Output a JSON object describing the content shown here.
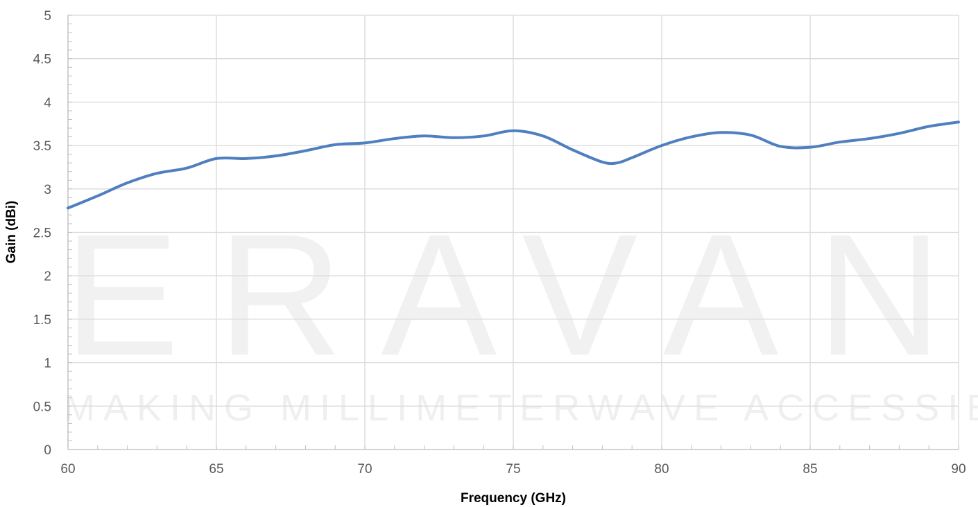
{
  "watermark": {
    "brand": "ERAVANT",
    "tagline": "MAKING MILLIMETERWAVE ACCESSIBLE"
  },
  "chart_data": {
    "type": "line",
    "title": "",
    "xlabel": "Frequency (GHz)",
    "ylabel": "Gain (dBi)",
    "xlim": [
      60,
      90
    ],
    "ylim": [
      0,
      5
    ],
    "xticks": [
      60,
      65,
      70,
      75,
      80,
      85,
      90
    ],
    "yticks": [
      0,
      0.5,
      1,
      1.5,
      2,
      2.5,
      3,
      3.5,
      4,
      4.5,
      5
    ],
    "grid": true,
    "legend": "none",
    "series": [
      {
        "color": "#4f7fbe",
        "x": [
          60,
          61,
          62,
          63,
          64,
          65,
          66,
          67,
          68,
          69,
          70,
          71,
          72,
          73,
          74,
          75,
          76,
          77,
          78,
          78.5,
          79,
          80,
          81,
          82,
          83,
          84,
          85,
          86,
          87,
          88,
          89,
          90
        ],
        "y": [
          2.78,
          2.92,
          3.07,
          3.18,
          3.24,
          3.35,
          3.35,
          3.38,
          3.44,
          3.51,
          3.53,
          3.58,
          3.61,
          3.59,
          3.61,
          3.67,
          3.61,
          3.45,
          3.31,
          3.3,
          3.36,
          3.5,
          3.6,
          3.65,
          3.62,
          3.49,
          3.48,
          3.54,
          3.58,
          3.64,
          3.72,
          3.77
        ]
      }
    ]
  }
}
